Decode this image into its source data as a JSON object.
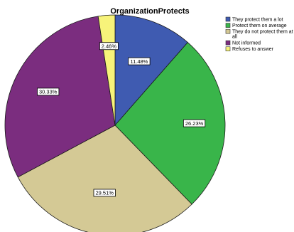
{
  "chart_data": {
    "type": "pie",
    "title": "OrganizationProtects",
    "categories": [
      "They protect them a lot",
      "Protect them on average",
      "They do not protect them at all",
      "Not informed",
      "Refuses to answer"
    ],
    "values": [
      11.48,
      26.23,
      29.51,
      30.33,
      2.46
    ],
    "data_labels": [
      "11.48%",
      "26.23%",
      "29.51%",
      "30.33%",
      "2.46%"
    ],
    "colors": [
      "#3f5bb1",
      "#39b54a",
      "#d4c995",
      "#7b2d7f",
      "#f7f37a"
    ],
    "legend_placement": "top-right",
    "start_angle_deg": 0,
    "direction": "clockwise"
  }
}
